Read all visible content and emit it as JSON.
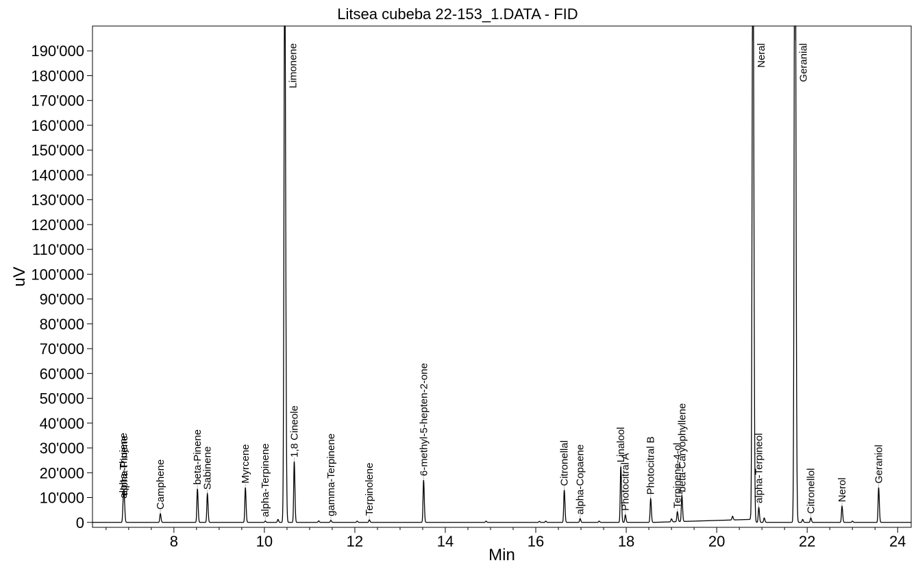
{
  "chart_data": {
    "type": "line",
    "title": "Litsea cubeba 22-153_1.DATA - FID",
    "xlabel": "Min",
    "ylabel": "uV",
    "xlim": [
      6.2,
      24.3
    ],
    "ylim": [
      -2000,
      200000
    ],
    "x_ticks": [
      8,
      10,
      12,
      14,
      16,
      18,
      20,
      22,
      24
    ],
    "x_tick_labels": [
      "8",
      "10",
      "12",
      "14",
      "16",
      "18",
      "20",
      "22",
      "24"
    ],
    "y_ticks": [
      0,
      10000,
      20000,
      30000,
      40000,
      50000,
      60000,
      70000,
      80000,
      90000,
      100000,
      110000,
      120000,
      130000,
      140000,
      150000,
      160000,
      170000,
      180000,
      190000
    ],
    "y_tick_labels": [
      "0",
      "10'000",
      "20'000",
      "30'000",
      "40'000",
      "50'000",
      "60'000",
      "70'000",
      "80'000",
      "90'000",
      "100'000",
      "110'000",
      "120'000",
      "130'000",
      "140'000",
      "150'000",
      "160'000",
      "170'000",
      "180'000",
      "190'000"
    ],
    "grid": false,
    "peaks": [
      {
        "name": "alpha-Thujene",
        "rt": 6.88,
        "height": 8000
      },
      {
        "name": "alpha-Pinene",
        "rt": 6.9,
        "height": 9000
      },
      {
        "name": "Camphene",
        "rt": 7.7,
        "height": 3500
      },
      {
        "name": "beta-Pinene",
        "rt": 8.52,
        "height": 13500
      },
      {
        "name": "Sabinene",
        "rt": 8.74,
        "height": 11500
      },
      {
        "name": "Myrcene",
        "rt": 9.58,
        "height": 14000
      },
      {
        "name": "alpha-Terpinene",
        "rt": 10.02,
        "height": 500
      },
      {
        "name": "Limonene",
        "rt": 10.45,
        "height": 230000
      },
      {
        "name": "1,8 Cineole",
        "rt": 10.66,
        "height": 24500
      },
      {
        "name": "gamma-Terpinene",
        "rt": 11.47,
        "height": 800
      },
      {
        "name": "Terpinolene",
        "rt": 12.32,
        "height": 1000
      },
      {
        "name": "6-methyl-5-hepten-2-one",
        "rt": 13.52,
        "height": 17000
      },
      {
        "name": "Citronellal",
        "rt": 16.63,
        "height": 13000
      },
      {
        "name": "alpha-Copaene",
        "rt": 16.98,
        "height": 1500
      },
      {
        "name": "Linalool",
        "rt": 17.88,
        "height": 22500
      },
      {
        "name": "Photocitral A",
        "rt": 17.98,
        "height": 3000
      },
      {
        "name": "Photocitral B",
        "rt": 18.54,
        "height": 9500
      },
      {
        "name": "Terpinene-4-ol",
        "rt": 19.13,
        "height": 4000
      },
      {
        "name": "beta-Caryophyllene",
        "rt": 19.23,
        "height": 10500
      },
      {
        "name": "Neral",
        "rt": 20.8,
        "height": 260000
      },
      {
        "name": "alpha-Terpineol",
        "rt": 20.93,
        "height": 6000
      },
      {
        "name": "Geranial",
        "rt": 21.73,
        "height": 300000
      },
      {
        "name": "Citronellol",
        "rt": 22.08,
        "height": 1800
      },
      {
        "name": "Nerol",
        "rt": 22.77,
        "height": 6500
      },
      {
        "name": "Geraniol",
        "rt": 23.58,
        "height": 14000
      }
    ],
    "minor_peaks": [
      {
        "rt": 10.3,
        "height": 1200
      },
      {
        "rt": 11.2,
        "height": 600
      },
      {
        "rt": 12.05,
        "height": 500
      },
      {
        "rt": 14.9,
        "height": 500
      },
      {
        "rt": 16.08,
        "height": 400
      },
      {
        "rt": 16.22,
        "height": 500
      },
      {
        "rt": 17.4,
        "height": 500
      },
      {
        "rt": 19.0,
        "height": 1200
      },
      {
        "rt": 20.35,
        "height": 1500
      },
      {
        "rt": 21.05,
        "height": 1800
      },
      {
        "rt": 21.9,
        "height": 1200
      },
      {
        "rt": 23.0,
        "height": 500
      }
    ]
  }
}
